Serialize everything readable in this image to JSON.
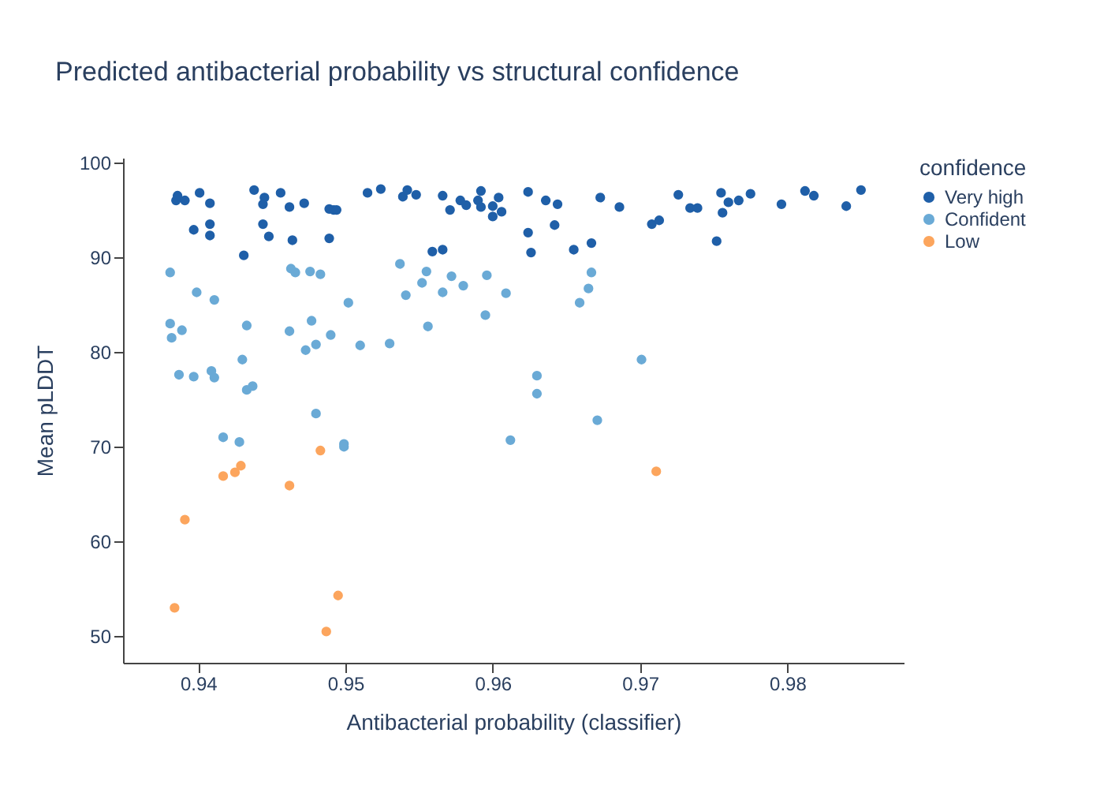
{
  "chart_data": {
    "type": "scatter",
    "title": "Predicted antibacterial probability vs structural confidence",
    "xlabel": "Antibacterial probability (classifier)",
    "ylabel": "Mean pLDDT",
    "legend_title": "confidence",
    "xlim": [
      0.9349,
      0.9879
    ],
    "xticks": [
      0.94,
      0.95,
      0.96,
      0.97,
      0.98
    ],
    "ylim": [
      47.2,
      100.5
    ],
    "yticks": [
      50,
      60,
      70,
      80,
      90,
      100
    ],
    "legend": "right",
    "marker": "circle",
    "grid": false,
    "series": [
      {
        "name": "Very high",
        "color": "#1f5fa8",
        "x": [
          0.9385,
          0.9386,
          0.9391,
          0.9401,
          0.9408,
          0.9397,
          0.9408,
          0.9408,
          0.9431,
          0.9438,
          0.9445,
          0.9444,
          0.9444,
          0.9448,
          0.9456,
          0.9462,
          0.9464,
          0.9472,
          0.9489,
          0.9489,
          0.9492,
          0.9494,
          0.9515,
          0.9524,
          0.9539,
          0.9542,
          0.9548,
          0.9566,
          0.9571,
          0.9559,
          0.9566,
          0.9578,
          0.9582,
          0.959,
          0.9592,
          0.9592,
          0.96,
          0.96,
          0.9604,
          0.9606,
          0.9624,
          0.9636,
          0.9644,
          0.9624,
          0.9626,
          0.9642,
          0.9655,
          0.9667,
          0.9673,
          0.9686,
          0.9708,
          0.9713,
          0.9726,
          0.9734,
          0.9739,
          0.9755,
          0.976,
          0.9756,
          0.9752,
          0.9767,
          0.9775,
          0.9796,
          0.9812,
          0.9818,
          0.984,
          0.985
        ],
        "values": [
          96.0,
          96.5,
          96.0,
          96.8,
          95.7,
          92.9,
          93.5,
          92.3,
          90.2,
          97.1,
          96.3,
          95.6,
          93.5,
          92.2,
          96.8,
          95.3,
          91.8,
          95.7,
          95.1,
          92.0,
          95.0,
          95.0,
          96.8,
          97.2,
          96.4,
          97.1,
          96.6,
          96.5,
          95.0,
          90.6,
          90.8,
          96.0,
          95.5,
          96.0,
          97.0,
          95.3,
          95.4,
          94.3,
          96.3,
          94.8,
          96.9,
          96.0,
          95.6,
          92.6,
          90.5,
          93.4,
          90.8,
          91.5,
          96.3,
          95.3,
          93.5,
          93.9,
          96.6,
          95.2,
          95.2,
          96.8,
          95.8,
          94.7,
          91.7,
          96.0,
          96.7,
          95.6,
          97.0,
          96.5,
          95.4,
          97.1
        ]
      },
      {
        "name": "Confident",
        "color": "#6aaad6",
        "x": [
          0.9381,
          0.9399,
          0.9411,
          0.9381,
          0.9382,
          0.9389,
          0.9387,
          0.9397,
          0.9409,
          0.9411,
          0.943,
          0.9433,
          0.9433,
          0.9437,
          0.9463,
          0.9466,
          0.9476,
          0.9483,
          0.9502,
          0.9462,
          0.9477,
          0.949,
          0.9473,
          0.948,
          0.951,
          0.948,
          0.953,
          0.9537,
          0.9541,
          0.9552,
          0.9555,
          0.9556,
          0.9566,
          0.9572,
          0.958,
          0.9596,
          0.9595,
          0.9609,
          0.9667,
          0.9665,
          0.9659,
          0.9701,
          0.963,
          0.963,
          0.9671,
          0.9417,
          0.9428,
          0.9499,
          0.9499,
          0.9612
        ],
        "values": [
          88.4,
          86.3,
          85.5,
          83.0,
          81.5,
          82.3,
          77.6,
          77.4,
          78.0,
          77.3,
          79.2,
          82.8,
          76.0,
          76.4,
          88.8,
          88.4,
          88.5,
          88.2,
          85.2,
          82.2,
          83.3,
          81.8,
          80.2,
          80.8,
          80.7,
          73.5,
          80.9,
          89.3,
          86.0,
          87.3,
          88.5,
          82.7,
          86.3,
          88.0,
          87.0,
          88.1,
          83.9,
          86.2,
          88.4,
          86.7,
          85.2,
          79.2,
          77.5,
          75.6,
          72.8,
          71.0,
          70.5,
          70.3,
          70.0,
          70.7
        ]
      },
      {
        "name": "Low",
        "color": "#fca55d",
        "x": [
          0.9417,
          0.9425,
          0.9429,
          0.9391,
          0.9462,
          0.9483,
          0.9384,
          0.9495,
          0.9487,
          0.9711
        ],
        "values": [
          66.9,
          67.3,
          68.0,
          62.3,
          65.9,
          69.6,
          53.0,
          54.3,
          50.5,
          67.4
        ]
      }
    ]
  }
}
